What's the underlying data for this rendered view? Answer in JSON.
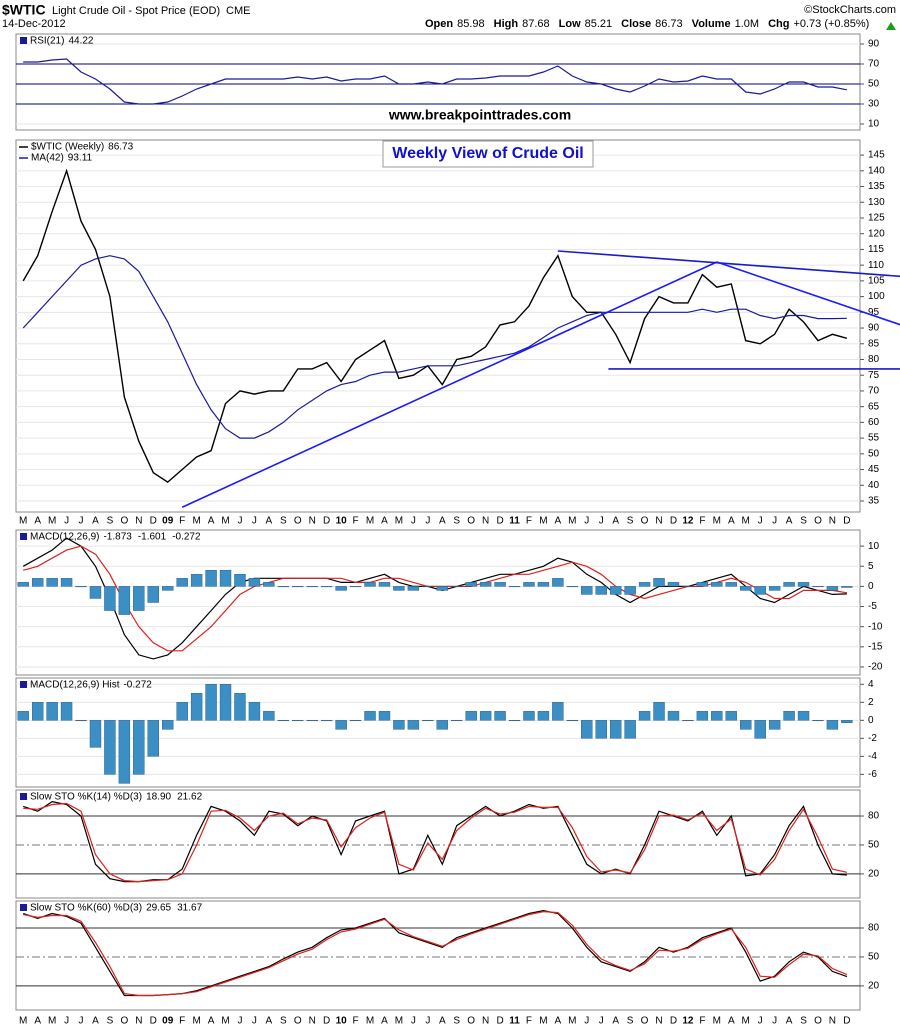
{
  "header": {
    "symbol": "$WTIC",
    "description": "Light Crude Oil - Spot Price (EOD)",
    "exchange": "CME",
    "date": "14-Dec-2012",
    "credit": "©StockCharts.com",
    "quote": [
      {
        "label": "Open",
        "value": "85.98"
      },
      {
        "label": "High",
        "value": "87.68"
      },
      {
        "label": "Low",
        "value": "85.21"
      },
      {
        "label": "Close",
        "value": "86.73"
      },
      {
        "label": "Volume",
        "value": "1.0M"
      },
      {
        "label": "Chg",
        "value": "+0.73 (+0.85%)"
      }
    ]
  },
  "chart_data": [
    {
      "type": "line",
      "label": "RSI(21)",
      "ylim": [
        4,
        100
      ],
      "yticks": [
        10,
        30,
        50,
        70,
        90
      ],
      "grid": true,
      "levels": [
        {
          "value": 30,
          "color": "#000080"
        },
        {
          "value": 50,
          "color": "#000080"
        },
        {
          "value": 70,
          "color": "#000080"
        }
      ],
      "series": [
        {
          "color": "#1a1a9c",
          "last_label": "44.22",
          "values": [
            72,
            72,
            74,
            75,
            62,
            55,
            45,
            32,
            30,
            30,
            32,
            38,
            45,
            50,
            55,
            55,
            55,
            55,
            55,
            57,
            55,
            57,
            53,
            55,
            55,
            58,
            50,
            50,
            52,
            50,
            55,
            55,
            56,
            58,
            58,
            58,
            62,
            68,
            58,
            52,
            50,
            45,
            42,
            48,
            55,
            52,
            53,
            58,
            55,
            55,
            42,
            40,
            45,
            52,
            52,
            47,
            47,
            44.22
          ]
        }
      ]
    },
    {
      "type": "line",
      "ylim": [
        31.5,
        149.8
      ],
      "yticks": [
        35,
        40,
        45,
        50,
        55,
        60,
        65,
        70,
        75,
        80,
        85,
        90,
        95,
        100,
        105,
        110,
        115,
        120,
        125,
        130,
        135,
        140,
        145
      ],
      "grid": true,
      "categories": [
        "M",
        "A",
        "M",
        "J",
        "J",
        "A",
        "S",
        "O",
        "N",
        "D",
        "09",
        "F",
        "M",
        "A",
        "M",
        "J",
        "J",
        "A",
        "S",
        "O",
        "N",
        "D",
        "10",
        "F",
        "M",
        "A",
        "M",
        "J",
        "J",
        "A",
        "S",
        "O",
        "N",
        "D",
        "11",
        "F",
        "M",
        "A",
        "M",
        "J",
        "J",
        "A",
        "S",
        "O",
        "N",
        "D",
        "12",
        "F",
        "M",
        "A",
        "M",
        "J",
        "J",
        "A",
        "S",
        "O",
        "N",
        "D"
      ],
      "series": [
        {
          "name": "$WTIC (Weekly)",
          "color": "#000000",
          "last_label": "86.73",
          "values": [
            105,
            113,
            127,
            140,
            124,
            115,
            100,
            68,
            54,
            44,
            41,
            45,
            49,
            51,
            66,
            70,
            69,
            70,
            70,
            77,
            77,
            79,
            73,
            80,
            83,
            86,
            74,
            75,
            78,
            72,
            80,
            81,
            84,
            91,
            92,
            97,
            106,
            113,
            100,
            95,
            95,
            88,
            79,
            93,
            100,
            98,
            98,
            107,
            103,
            104,
            86,
            85,
            88,
            96,
            92,
            86,
            88,
            86.73
          ]
        },
        {
          "name": "MA(42)",
          "color": "#1a1a9c",
          "last_label": "93.11",
          "values": [
            90,
            95,
            100,
            105,
            110,
            112,
            113,
            112,
            108,
            100,
            92,
            82,
            72,
            64,
            58,
            55,
            55,
            57,
            60,
            64,
            67,
            70,
            72,
            73,
            75,
            76,
            76,
            77,
            78,
            78,
            78,
            79,
            80,
            81,
            82,
            84,
            87,
            90,
            92,
            94,
            95,
            95,
            95,
            95,
            95,
            95,
            95,
            96,
            95,
            96,
            96,
            94,
            93,
            94,
            94,
            93,
            93,
            93.11
          ]
        }
      ],
      "trendlines": [
        {
          "x": [
            11,
            48
          ],
          "y": [
            33,
            111
          ],
          "color": "#1a1aff"
        },
        {
          "x": [
            37,
            62
          ],
          "y": [
            114.5,
            106
          ],
          "color": "#1a1acc"
        },
        {
          "x": [
            48,
            62
          ],
          "y": [
            111,
            89
          ],
          "color": "#1a1aff"
        },
        {
          "x": [
            40.5,
            62
          ],
          "y": [
            77,
            77
          ],
          "color": "#1a1acc"
        }
      ],
      "annotations": [
        "www.breakpointtrades.com",
        "Weekly View of Crude Oil"
      ]
    },
    {
      "type": "line",
      "label": "MACD(12,26,9)",
      "ylim": [
        -22,
        14
      ],
      "yticks": [
        -20,
        -15,
        -10,
        -5,
        0,
        5,
        10
      ],
      "grid": true,
      "series": [
        {
          "color": "#000000",
          "last_label": "-1.873",
          "values": [
            5,
            7,
            9,
            12,
            10,
            5,
            -3,
            -12,
            -17,
            -18,
            -17,
            -14,
            -10,
            -6,
            -2,
            1,
            2,
            2,
            2,
            2,
            2,
            2,
            1,
            1,
            2,
            3,
            1,
            0,
            0,
            -1,
            0,
            1,
            2,
            3,
            3,
            4,
            5,
            7,
            6,
            3,
            1,
            -2,
            -4,
            -2,
            0,
            0,
            0,
            1,
            2,
            3,
            0,
            -3,
            -4,
            -2,
            0,
            -1,
            -2,
            -1.873
          ]
        },
        {
          "color": "#e0201c",
          "last_label": "-1.601",
          "values": [
            4,
            5,
            7,
            9,
            10,
            8,
            3,
            -4,
            -10,
            -14,
            -16,
            -16,
            -13,
            -10,
            -6,
            -2,
            0,
            1,
            2,
            2,
            2,
            2,
            2,
            1,
            1,
            2,
            2,
            1,
            0,
            0,
            0,
            0,
            1,
            2,
            3,
            3,
            4,
            5,
            6,
            5,
            3,
            0,
            -2,
            -3,
            -2,
            -1,
            0,
            0,
            1,
            2,
            1,
            -1,
            -3,
            -3,
            -1,
            -1,
            -1,
            -1.601
          ]
        },
        {
          "kind": "bar",
          "color": "#3b8fc4",
          "last_label": "-0.272",
          "values": [
            1,
            2,
            2,
            2,
            0,
            -3,
            -6,
            -7,
            -6,
            -4,
            -1,
            2,
            3,
            4,
            4,
            3,
            2,
            1,
            0,
            0,
            0,
            0,
            -1,
            0,
            1,
            1,
            -1,
            -1,
            0,
            -1,
            0,
            1,
            1,
            1,
            0,
            1,
            1,
            2,
            0,
            -2,
            -2,
            -2,
            -2,
            1,
            2,
            1,
            0,
            1,
            1,
            1,
            -1,
            -2,
            -1,
            1,
            1,
            0,
            -1,
            -0.272
          ]
        }
      ]
    },
    {
      "type": "bar",
      "label": "MACD(12,26,9) Hist",
      "ylim": [
        -7.4,
        4.7
      ],
      "yticks": [
        -6,
        -4,
        -2,
        0,
        2,
        4
      ],
      "grid": true,
      "series": [
        {
          "kind": "bar",
          "color": "#3b8fc4",
          "last_label": "-0.272",
          "values": [
            1,
            2,
            2,
            2,
            0,
            -3,
            -6,
            -7,
            -6,
            -4,
            -1,
            2,
            3,
            4,
            4,
            3,
            2,
            1,
            0,
            0,
            0,
            0,
            -1,
            0,
            1,
            1,
            -1,
            -1,
            0,
            -1,
            0,
            1,
            1,
            1,
            0,
            1,
            1,
            2,
            0,
            -2,
            -2,
            -2,
            -2,
            1,
            2,
            1,
            0,
            1,
            1,
            1,
            -1,
            -2,
            -1,
            1,
            1,
            0,
            -1,
            -0.272
          ]
        }
      ]
    },
    {
      "type": "line",
      "label": "Slow STO %K(14) %D(3)",
      "ylim": [
        -5,
        107
      ],
      "yticks": [
        20,
        50,
        80
      ],
      "grid": false,
      "levels": [
        {
          "value": 20,
          "color": "#333333"
        },
        {
          "value": 50,
          "color": "#777777",
          "style": "dashdot"
        },
        {
          "value": 80,
          "color": "#333333"
        }
      ],
      "series": [
        {
          "color": "#000000",
          "last_label": "18.90",
          "values": [
            90,
            85,
            95,
            92,
            80,
            30,
            15,
            12,
            12,
            14,
            14,
            25,
            60,
            90,
            85,
            75,
            60,
            85,
            82,
            70,
            80,
            75,
            40,
            75,
            80,
            85,
            20,
            25,
            60,
            30,
            70,
            80,
            90,
            80,
            85,
            92,
            88,
            90,
            60,
            30,
            20,
            25,
            20,
            50,
            85,
            80,
            75,
            85,
            60,
            80,
            18,
            20,
            40,
            70,
            90,
            50,
            20,
            18.9
          ]
        },
        {
          "color": "#e0201c",
          "last_label": "21.62",
          "values": [
            88,
            87,
            92,
            93,
            85,
            40,
            20,
            13,
            12,
            13,
            14,
            20,
            50,
            85,
            86,
            78,
            65,
            80,
            83,
            72,
            78,
            76,
            48,
            68,
            78,
            84,
            30,
            24,
            52,
            35,
            65,
            78,
            88,
            82,
            84,
            90,
            89,
            89,
            68,
            38,
            22,
            24,
            21,
            45,
            80,
            81,
            76,
            83,
            65,
            77,
            25,
            19,
            35,
            65,
            87,
            58,
            25,
            21.62
          ]
        }
      ]
    },
    {
      "type": "line",
      "label": "Slow STO %K(60) %D(3)",
      "ylim": [
        -5,
        108
      ],
      "yticks": [
        20,
        50,
        80
      ],
      "grid": false,
      "levels": [
        {
          "value": 20,
          "color": "#333333"
        },
        {
          "value": 50,
          "color": "#777777",
          "style": "dashdot"
        },
        {
          "value": 80,
          "color": "#333333"
        }
      ],
      "series": [
        {
          "color": "#000000",
          "last_label": "29.65",
          "values": [
            95,
            90,
            95,
            92,
            85,
            60,
            35,
            10,
            10,
            10,
            11,
            12,
            15,
            20,
            25,
            30,
            35,
            40,
            48,
            55,
            60,
            70,
            78,
            80,
            85,
            90,
            75,
            70,
            65,
            60,
            70,
            75,
            80,
            85,
            90,
            95,
            98,
            95,
            80,
            60,
            45,
            40,
            35,
            45,
            60,
            55,
            60,
            70,
            75,
            80,
            55,
            25,
            30,
            45,
            55,
            50,
            35,
            29.65
          ]
        },
        {
          "color": "#e0201c",
          "last_label": "31.67",
          "values": [
            94,
            91,
            93,
            93,
            87,
            65,
            40,
            12,
            10,
            10,
            11,
            12,
            14,
            19,
            24,
            29,
            34,
            39,
            46,
            53,
            58,
            68,
            76,
            79,
            84,
            89,
            78,
            71,
            66,
            61,
            68,
            74,
            79,
            84,
            89,
            94,
            97,
            96,
            83,
            63,
            48,
            41,
            36,
            43,
            57,
            56,
            59,
            68,
            74,
            79,
            60,
            30,
            29,
            42,
            53,
            51,
            38,
            31.67
          ]
        }
      ]
    }
  ]
}
